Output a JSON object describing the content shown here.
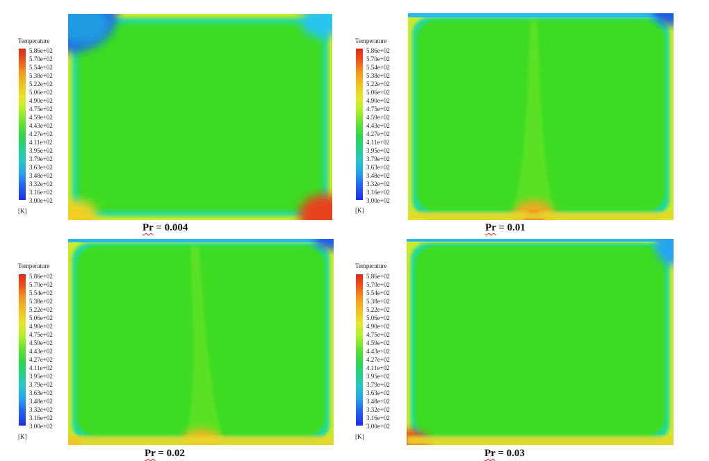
{
  "legend": {
    "title": "Temperature",
    "unit": "[K]",
    "ticks": [
      "5.86e+02",
      "5.70e+02",
      "5.54e+02",
      "5.38e+02",
      "5.22e+02",
      "5.06e+02",
      "4.90e+02",
      "4.75e+02",
      "4.59e+02",
      "4.43e+02",
      "4.27e+02",
      "4.11e+02",
      "3.95e+02",
      "3.79e+02",
      "3.63e+02",
      "3.48e+02",
      "3.32e+02",
      "3.16e+02",
      "3.00e+02"
    ]
  },
  "panels": [
    {
      "caption_prefix": "Pr",
      "caption_value": " = 0.004"
    },
    {
      "caption_prefix": "Pr",
      "caption_value": " = 0.01"
    },
    {
      "caption_prefix": "Pr",
      "caption_value": " = 0.02"
    },
    {
      "caption_prefix": "Pr",
      "caption_value": " = 0.03"
    }
  ],
  "colors": {
    "field": "#3ddc22",
    "hot": "#e8421a",
    "cold": "#1f5fe6",
    "edge": "#c8e82a"
  }
}
